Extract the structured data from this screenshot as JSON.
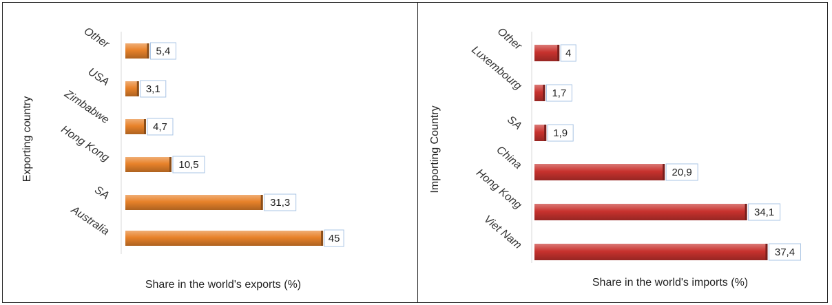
{
  "chart_data": [
    {
      "type": "bar",
      "orientation": "horizontal",
      "categories": [
        "Australia",
        "SA",
        "Hong Kong",
        "Zimbabwe",
        "USA",
        "Other"
      ],
      "values": [
        45,
        31.3,
        10.5,
        4.7,
        3.1,
        5.4
      ],
      "data_labels": [
        "45",
        "31,3",
        "10,5",
        "4,7",
        "3,1",
        "5,4"
      ],
      "xlabel": "Share in the world's exports (%)",
      "ylabel": "Exporting country",
      "xlim": [
        0,
        50
      ],
      "grid": false,
      "color": "#e8822a"
    },
    {
      "type": "bar",
      "orientation": "horizontal",
      "categories": [
        "Viet Nam",
        "Hong Kong",
        "China",
        "SA",
        "Luxembourg",
        "Other"
      ],
      "values": [
        37.4,
        34.1,
        20.9,
        1.9,
        1.7,
        4
      ],
      "data_labels": [
        "37,4",
        "34,1",
        "20,9",
        "1,9",
        "1,7",
        "4"
      ],
      "xlabel": "Share in the world's imports (%)",
      "ylabel": "Importing Country",
      "xlim": [
        0,
        40
      ],
      "grid": false,
      "color": "#c8322e"
    }
  ]
}
